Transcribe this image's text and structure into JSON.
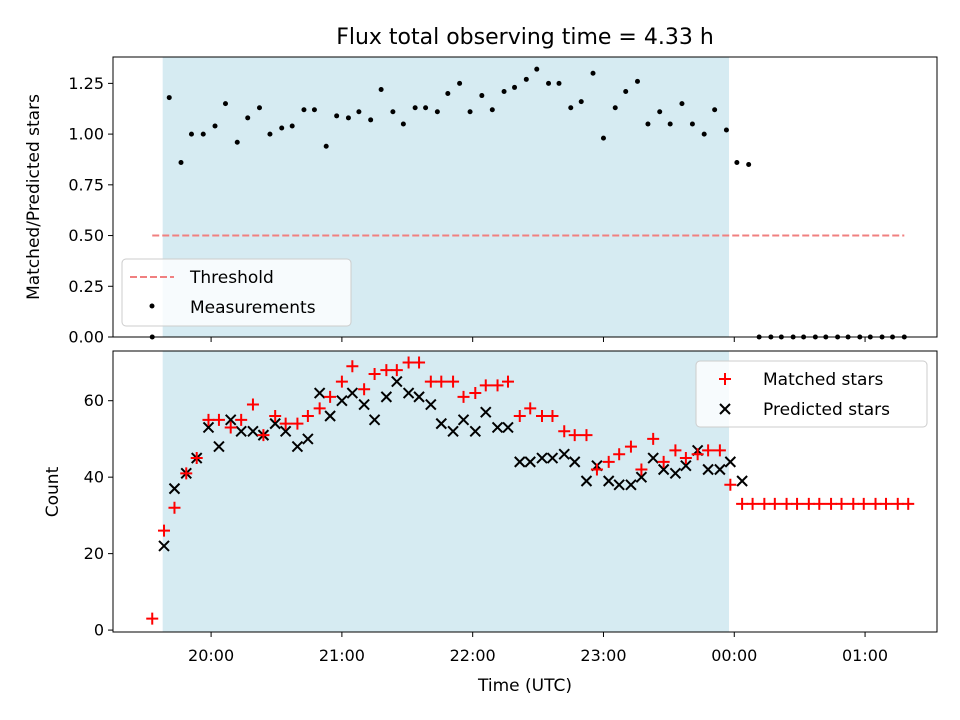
{
  "chart_data": {
    "type": "scatter",
    "title": "Flux total observing time = 4.33 h",
    "xlabel": "Time (UTC)",
    "xlim": [
      19.25,
      25.55
    ],
    "x_ticks": [
      {
        "value": 20,
        "label": "20:00"
      },
      {
        "value": 21,
        "label": "21:00"
      },
      {
        "value": 22,
        "label": "22:00"
      },
      {
        "value": 23,
        "label": "23:00"
      },
      {
        "value": 24,
        "label": "00:00"
      },
      {
        "value": 25,
        "label": "01:00"
      }
    ],
    "observing_window": {
      "start": 19.63,
      "end": 23.96
    },
    "top": {
      "ylabel": "Matched/Predicted stars",
      "ylim": [
        0,
        1.38
      ],
      "y_ticks": [
        "0.00",
        "0.25",
        "0.50",
        "0.75",
        "1.00",
        "1.25"
      ],
      "threshold": {
        "name": "Threshold",
        "value": 0.5,
        "x_start": 19.55,
        "x_end": 25.3,
        "color": "#f08080"
      },
      "measurements": {
        "name": "Measurements",
        "color": "#000000",
        "points": [
          [
            19.55,
            0.0
          ],
          [
            19.68,
            1.18
          ],
          [
            19.77,
            0.86
          ],
          [
            19.85,
            1.0
          ],
          [
            19.94,
            1.0
          ],
          [
            20.03,
            1.04
          ],
          [
            20.11,
            1.15
          ],
          [
            20.2,
            0.96
          ],
          [
            20.28,
            1.08
          ],
          [
            20.37,
            1.13
          ],
          [
            20.45,
            1.0
          ],
          [
            20.54,
            1.03
          ],
          [
            20.62,
            1.04
          ],
          [
            20.71,
            1.12
          ],
          [
            20.79,
            1.12
          ],
          [
            20.88,
            0.94
          ],
          [
            20.96,
            1.09
          ],
          [
            21.05,
            1.08
          ],
          [
            21.13,
            1.11
          ],
          [
            21.22,
            1.07
          ],
          [
            21.3,
            1.22
          ],
          [
            21.39,
            1.11
          ],
          [
            21.47,
            1.05
          ],
          [
            21.56,
            1.13
          ],
          [
            21.64,
            1.13
          ],
          [
            21.73,
            1.11
          ],
          [
            21.81,
            1.2
          ],
          [
            21.9,
            1.25
          ],
          [
            21.98,
            1.11
          ],
          [
            22.07,
            1.19
          ],
          [
            22.15,
            1.12
          ],
          [
            22.24,
            1.21
          ],
          [
            22.32,
            1.23
          ],
          [
            22.41,
            1.27
          ],
          [
            22.49,
            1.32
          ],
          [
            22.58,
            1.25
          ],
          [
            22.66,
            1.25
          ],
          [
            22.75,
            1.13
          ],
          [
            22.83,
            1.16
          ],
          [
            22.92,
            1.3
          ],
          [
            23.0,
            0.98
          ],
          [
            23.09,
            1.13
          ],
          [
            23.17,
            1.21
          ],
          [
            23.26,
            1.26
          ],
          [
            23.34,
            1.05
          ],
          [
            23.43,
            1.11
          ],
          [
            23.51,
            1.05
          ],
          [
            23.6,
            1.15
          ],
          [
            23.68,
            1.05
          ],
          [
            23.77,
            1.0
          ],
          [
            23.85,
            1.12
          ],
          [
            23.94,
            1.02
          ],
          [
            24.02,
            0.86
          ],
          [
            24.11,
            0.85
          ],
          [
            24.19,
            0.0
          ],
          [
            24.28,
            0.0
          ],
          [
            24.36,
            0.0
          ],
          [
            24.45,
            0.0
          ],
          [
            24.53,
            0.0
          ],
          [
            24.62,
            0.0
          ],
          [
            24.7,
            0.0
          ],
          [
            24.79,
            0.0
          ],
          [
            24.87,
            0.0
          ],
          [
            24.96,
            0.0
          ],
          [
            25.04,
            0.0
          ],
          [
            25.13,
            0.0
          ],
          [
            25.21,
            0.0
          ],
          [
            25.3,
            0.0
          ]
        ]
      }
    },
    "bottom": {
      "ylabel": "Count",
      "ylim": [
        -0.5,
        73
      ],
      "y_ticks": [
        "0",
        "20",
        "40",
        "60"
      ],
      "matched": {
        "name": "Matched stars",
        "color": "#ff0000",
        "points": [
          [
            19.55,
            3
          ],
          [
            19.64,
            26
          ],
          [
            19.72,
            32
          ],
          [
            19.81,
            41
          ],
          [
            19.89,
            45
          ],
          [
            19.98,
            55
          ],
          [
            20.06,
            55
          ],
          [
            20.15,
            53
          ],
          [
            20.23,
            55
          ],
          [
            20.32,
            59
          ],
          [
            20.4,
            51
          ],
          [
            20.49,
            56
          ],
          [
            20.57,
            54
          ],
          [
            20.66,
            54
          ],
          [
            20.74,
            56
          ],
          [
            20.83,
            58
          ],
          [
            20.91,
            61
          ],
          [
            21.0,
            65
          ],
          [
            21.08,
            69
          ],
          [
            21.17,
            63
          ],
          [
            21.25,
            67
          ],
          [
            21.34,
            68
          ],
          [
            21.42,
            68
          ],
          [
            21.51,
            70
          ],
          [
            21.59,
            70
          ],
          [
            21.68,
            65
          ],
          [
            21.76,
            65
          ],
          [
            21.85,
            65
          ],
          [
            21.93,
            61
          ],
          [
            22.02,
            62
          ],
          [
            22.1,
            64
          ],
          [
            22.19,
            64
          ],
          [
            22.27,
            65
          ],
          [
            22.36,
            56
          ],
          [
            22.44,
            58
          ],
          [
            22.53,
            56
          ],
          [
            22.61,
            56
          ],
          [
            22.7,
            52
          ],
          [
            22.78,
            51
          ],
          [
            22.87,
            51
          ],
          [
            22.95,
            42
          ],
          [
            23.04,
            44
          ],
          [
            23.12,
            46
          ],
          [
            23.21,
            48
          ],
          [
            23.29,
            42
          ],
          [
            23.38,
            50
          ],
          [
            23.46,
            44
          ],
          [
            23.55,
            47
          ],
          [
            23.63,
            45
          ],
          [
            23.72,
            46
          ],
          [
            23.8,
            47
          ],
          [
            23.89,
            47
          ],
          [
            23.97,
            38
          ],
          [
            24.06,
            33
          ],
          [
            24.14,
            33
          ],
          [
            24.23,
            33
          ],
          [
            24.31,
            33
          ],
          [
            24.4,
            33
          ],
          [
            24.48,
            33
          ],
          [
            24.57,
            33
          ],
          [
            24.65,
            33
          ],
          [
            24.74,
            33
          ],
          [
            24.82,
            33
          ],
          [
            24.91,
            33
          ],
          [
            24.99,
            33
          ],
          [
            25.08,
            33
          ],
          [
            25.16,
            33
          ],
          [
            25.25,
            33
          ],
          [
            25.33,
            33
          ]
        ]
      },
      "predicted": {
        "name": "Predicted stars",
        "color": "#000000",
        "points": [
          [
            19.64,
            22
          ],
          [
            19.72,
            37
          ],
          [
            19.81,
            41
          ],
          [
            19.89,
            45
          ],
          [
            19.98,
            53
          ],
          [
            20.06,
            48
          ],
          [
            20.15,
            55
          ],
          [
            20.23,
            52
          ],
          [
            20.32,
            52
          ],
          [
            20.4,
            51
          ],
          [
            20.49,
            54
          ],
          [
            20.57,
            52
          ],
          [
            20.66,
            48
          ],
          [
            20.74,
            50
          ],
          [
            20.83,
            62
          ],
          [
            20.91,
            56
          ],
          [
            21.0,
            60
          ],
          [
            21.08,
            62
          ],
          [
            21.17,
            59
          ],
          [
            21.25,
            55
          ],
          [
            21.34,
            61
          ],
          [
            21.42,
            65
          ],
          [
            21.51,
            62
          ],
          [
            21.59,
            61
          ],
          [
            21.68,
            59
          ],
          [
            21.76,
            54
          ],
          [
            21.85,
            52
          ],
          [
            21.93,
            55
          ],
          [
            22.02,
            52
          ],
          [
            22.1,
            57
          ],
          [
            22.19,
            53
          ],
          [
            22.27,
            53
          ],
          [
            22.36,
            44
          ],
          [
            22.44,
            44
          ],
          [
            22.53,
            45
          ],
          [
            22.61,
            45
          ],
          [
            22.7,
            46
          ],
          [
            22.78,
            44
          ],
          [
            22.87,
            39
          ],
          [
            22.95,
            43
          ],
          [
            23.04,
            39
          ],
          [
            23.12,
            38
          ],
          [
            23.21,
            38
          ],
          [
            23.29,
            40
          ],
          [
            23.38,
            45
          ],
          [
            23.46,
            42
          ],
          [
            23.55,
            41
          ],
          [
            23.63,
            43
          ],
          [
            23.72,
            47
          ],
          [
            23.8,
            42
          ],
          [
            23.89,
            42
          ],
          [
            23.97,
            44
          ],
          [
            24.06,
            39
          ]
        ]
      }
    }
  }
}
